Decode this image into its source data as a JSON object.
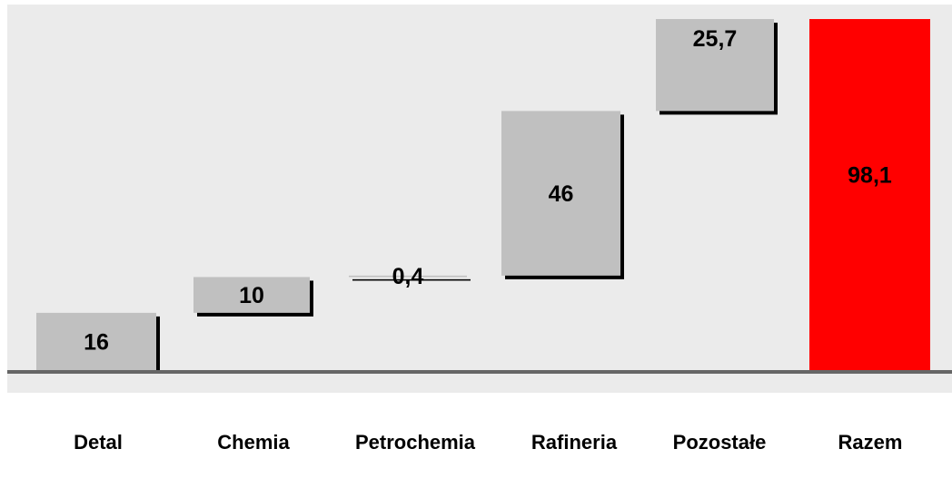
{
  "chart_data": {
    "type": "bar",
    "subtype": "waterfall",
    "title": "",
    "xlabel": "",
    "ylabel": "",
    "categories": [
      "Detal",
      "Chemia",
      "Petrochemia",
      "Rafineria",
      "Pozostałe",
      "Razem"
    ],
    "values": [
      16,
      10,
      0.4,
      46,
      25.7,
      98.1
    ],
    "value_labels": [
      "16",
      "10",
      "0,4",
      "46",
      "25,7",
      "98,1"
    ],
    "is_total": [
      false,
      false,
      false,
      false,
      false,
      true
    ],
    "ylim": [
      0,
      98.1
    ],
    "grid": false,
    "legend": "none",
    "colors": {
      "background": "#ebebeb",
      "bar": "#c0c0c0",
      "total_bar": "#ff0000",
      "shadow": "#000000",
      "baseline": "#666666"
    }
  }
}
